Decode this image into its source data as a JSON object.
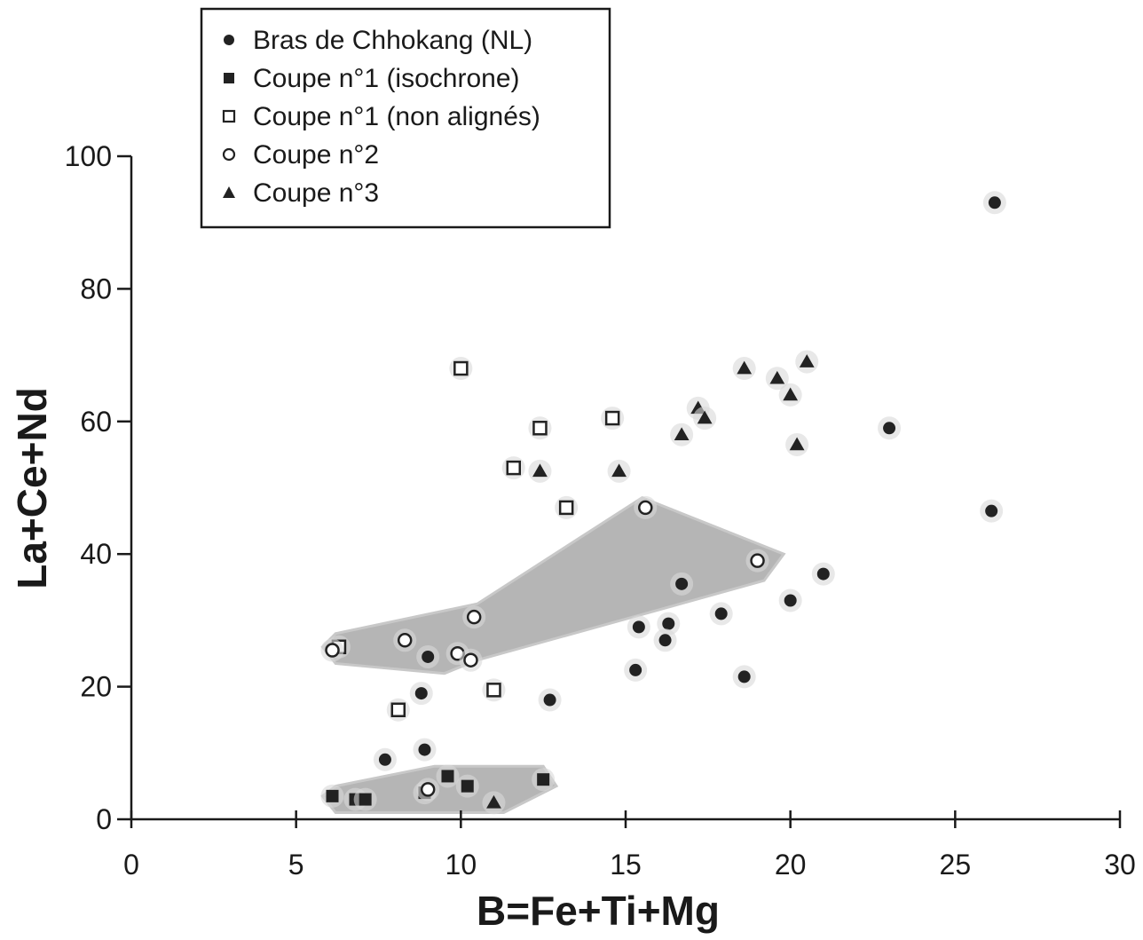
{
  "chart_data": {
    "type": "scatter",
    "xlabel": "B=Fe+Ti+Mg",
    "ylabel": "La+Ce+Nd",
    "xlim": [
      0,
      30
    ],
    "ylim": [
      0,
      100
    ],
    "xticks": [
      0,
      5,
      10,
      15,
      20,
      25,
      30
    ],
    "yticks": [
      0,
      20,
      40,
      60,
      80,
      100
    ],
    "grid": false,
    "legend_position": "top-left",
    "colors": {
      "axis": "#1a1a1a",
      "marker": "#222222",
      "marker_fill_open": "#ffffff",
      "shaded_region": "#a8a8a8"
    },
    "series": [
      {
        "name": "Bras de Chhokang (NL)",
        "marker": "filled-circle",
        "points": [
          [
            26.2,
            93
          ],
          [
            23.0,
            59
          ],
          [
            26.1,
            46.5
          ],
          [
            21.0,
            37
          ],
          [
            20.0,
            33
          ],
          [
            16.7,
            35.5
          ],
          [
            17.9,
            31
          ],
          [
            16.3,
            29.5
          ],
          [
            16.2,
            27
          ],
          [
            15.4,
            29
          ],
          [
            15.3,
            22.5
          ],
          [
            18.6,
            21.5
          ],
          [
            12.7,
            18
          ],
          [
            9.0,
            24.5
          ],
          [
            8.8,
            19
          ],
          [
            8.9,
            10.5
          ],
          [
            7.7,
            9
          ]
        ]
      },
      {
        "name": "Coupe n°1 (isochrone)",
        "marker": "filled-square",
        "points": [
          [
            6.1,
            3.5
          ],
          [
            6.8,
            3
          ],
          [
            7.1,
            3
          ],
          [
            8.9,
            4
          ],
          [
            9.6,
            6.5
          ],
          [
            10.2,
            5
          ],
          [
            12.5,
            6
          ]
        ]
      },
      {
        "name": "Coupe n°1 (non alignés)",
        "marker": "open-square",
        "points": [
          [
            10.0,
            68
          ],
          [
            12.4,
            59
          ],
          [
            14.6,
            60.5
          ],
          [
            11.6,
            53
          ],
          [
            13.2,
            47
          ],
          [
            6.3,
            26
          ],
          [
            11.0,
            19.5
          ],
          [
            8.1,
            16.5
          ]
        ]
      },
      {
        "name": "Coupe n°2",
        "marker": "open-circle",
        "points": [
          [
            15.6,
            47
          ],
          [
            19.0,
            39
          ],
          [
            10.4,
            30.5
          ],
          [
            8.3,
            27
          ],
          [
            9.9,
            25
          ],
          [
            10.3,
            24
          ],
          [
            6.1,
            25.5
          ],
          [
            9.0,
            4.5
          ]
        ]
      },
      {
        "name": "Coupe n°3",
        "marker": "filled-triangle",
        "points": [
          [
            18.6,
            68
          ],
          [
            19.6,
            66.5
          ],
          [
            20.5,
            69
          ],
          [
            20.0,
            64
          ],
          [
            17.2,
            62
          ],
          [
            17.4,
            60.5
          ],
          [
            16.7,
            58
          ],
          [
            20.2,
            56.5
          ],
          [
            12.4,
            52.5
          ],
          [
            14.8,
            52.5
          ],
          [
            11.0,
            2.5
          ]
        ]
      }
    ],
    "shaded_regions": [
      {
        "polygon": [
          [
            5.8,
            26
          ],
          [
            6.2,
            28
          ],
          [
            10.5,
            32.5
          ],
          [
            15.5,
            48.5
          ],
          [
            19.8,
            40
          ],
          [
            19.2,
            36
          ],
          [
            10.5,
            24
          ],
          [
            9.5,
            22
          ],
          [
            6.2,
            23.5
          ]
        ]
      },
      {
        "polygon": [
          [
            5.8,
            3.5
          ],
          [
            6.2,
            1
          ],
          [
            11.3,
            1
          ],
          [
            12.9,
            5
          ],
          [
            12.5,
            8
          ],
          [
            9.2,
            8
          ],
          [
            6.2,
            5
          ]
        ]
      }
    ]
  }
}
